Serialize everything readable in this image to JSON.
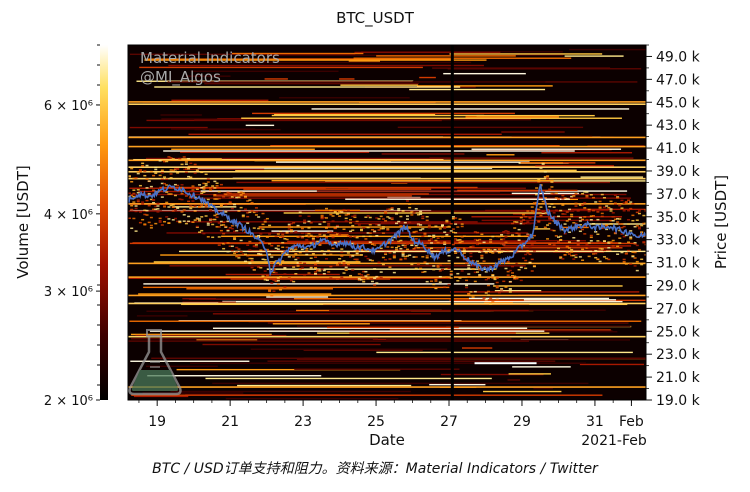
{
  "chart_data": {
    "type": "heatmap",
    "title": "BTC_USDT",
    "xlabel": "Date",
    "x_secondary_label": "2021-Feb",
    "ylabel_left": "Volume [USDT]",
    "ylabel_right": "Price [USDT]",
    "watermark": [
      "Material Indicators",
      "@MI_Algos"
    ],
    "x_ticks": [
      "19",
      "21",
      "23",
      "25",
      "27",
      "29",
      "31",
      "Feb"
    ],
    "x_tick_days": [
      19,
      21,
      23,
      25,
      27,
      29,
      31,
      32
    ],
    "x_range_days": [
      18.2,
      32.4
    ],
    "y_range_price_k": [
      19.0,
      50.0
    ],
    "price_ticks": [
      "19.0 k",
      "21.0 k",
      "23.0 k",
      "25.0 k",
      "27.0 k",
      "29.0 k",
      "31.0 k",
      "33.0 k",
      "35.0 k",
      "37.0 k",
      "39.0 k",
      "41.0 k",
      "43.0 k",
      "45.0 k",
      "47.0 k",
      "49.0 k"
    ],
    "price_tick_values_k": [
      19,
      21,
      23,
      25,
      27,
      29,
      31,
      33,
      35,
      37,
      39,
      41,
      43,
      45,
      47,
      49
    ],
    "colorbar": {
      "scale": "log",
      "range": [
        2000000,
        7500000
      ],
      "ticks": [
        "2 × 10⁶",
        "3 × 10⁶",
        "4 × 10⁶",
        "6 × 10⁶"
      ],
      "tick_values": [
        2000000,
        3000000,
        4000000,
        6000000
      ],
      "colors": [
        "#000000",
        "#3d0000",
        "#a01000",
        "#e04a00",
        "#ff9a10",
        "#ffe060",
        "#ffffff"
      ]
    },
    "price_series": {
      "color": "#4a72c8",
      "points": [
        [
          18.2,
          36.5
        ],
        [
          18.5,
          37.0
        ],
        [
          18.8,
          36.8
        ],
        [
          19.1,
          37.3
        ],
        [
          19.4,
          37.6
        ],
        [
          19.7,
          37.4
        ],
        [
          19.9,
          37.0
        ],
        [
          20.2,
          36.6
        ],
        [
          20.5,
          35.8
        ],
        [
          20.8,
          35.2
        ],
        [
          21.1,
          34.6
        ],
        [
          21.4,
          34.0
        ],
        [
          21.7,
          33.2
        ],
        [
          22.0,
          32.2
        ],
        [
          22.1,
          30.2
        ],
        [
          22.3,
          31.0
        ],
        [
          22.6,
          32.2
        ],
        [
          22.9,
          32.5
        ],
        [
          23.2,
          32.3
        ],
        [
          23.5,
          33.0
        ],
        [
          23.8,
          32.5
        ],
        [
          24.1,
          32.8
        ],
        [
          24.4,
          32.4
        ],
        [
          24.7,
          32.3
        ],
        [
          25.0,
          32.0
        ],
        [
          25.3,
          32.8
        ],
        [
          25.6,
          33.5
        ],
        [
          25.8,
          34.2
        ],
        [
          26.0,
          33.0
        ],
        [
          26.3,
          32.5
        ],
        [
          26.6,
          31.5
        ],
        [
          26.9,
          32.0
        ],
        [
          27.2,
          32.2
        ],
        [
          27.5,
          31.3
        ],
        [
          27.8,
          30.6
        ],
        [
          28.1,
          30.4
        ],
        [
          28.4,
          31.0
        ],
        [
          28.7,
          31.5
        ],
        [
          29.0,
          32.5
        ],
        [
          29.3,
          33.5
        ],
        [
          29.5,
          37.8
        ],
        [
          29.7,
          35.5
        ],
        [
          29.9,
          34.6
        ],
        [
          30.2,
          33.8
        ],
        [
          30.5,
          34.2
        ],
        [
          30.8,
          34.3
        ],
        [
          31.1,
          34.0
        ],
        [
          31.4,
          34.2
        ],
        [
          31.7,
          33.8
        ],
        [
          32.0,
          33.6
        ],
        [
          32.2,
          33.2
        ],
        [
          32.4,
          33.5
        ]
      ]
    },
    "caption": "BTC / USD订单支持和阻力。资料来源：Material Indicators / Twitter"
  }
}
